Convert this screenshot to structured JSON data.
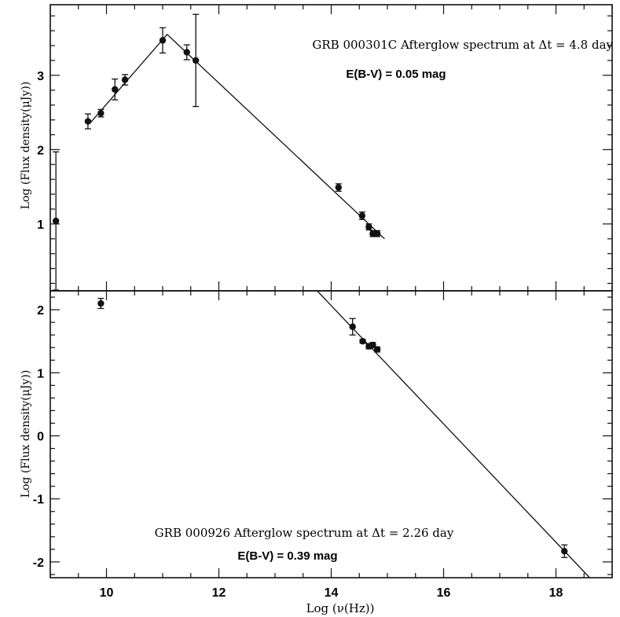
{
  "chart_data": [
    {
      "type": "scatter",
      "title": "GRB 000301C Afterglow spectrum at Δt = 4.8 day",
      "subtitle": "E(B-V) = 0.05 mag",
      "xlabel": "",
      "ylabel": "Log (Flux density(μJy))",
      "xlim": [
        9.0,
        19.0
      ],
      "ylim": [
        0.1,
        3.95
      ],
      "yticks": [
        1,
        2,
        3
      ],
      "grid": false,
      "series": [
        {
          "x": [
            9.1,
            9.67,
            9.9,
            10.15,
            10.33,
            11.0,
            11.43,
            11.59,
            14.13,
            14.55,
            14.67,
            14.74,
            14.82
          ],
          "y": [
            1.04,
            2.38,
            2.49,
            2.81,
            2.94,
            3.47,
            3.31,
            3.2,
            1.49,
            1.11,
            0.96,
            0.87,
            0.87
          ],
          "yerr": [
            0.93,
            0.1,
            0.05,
            0.14,
            0.07,
            0.17,
            0.1,
            0.62,
            0.05,
            0.05,
            0.04,
            0.04,
            0.04
          ]
        }
      ],
      "fit": {
        "x": [
          9.7,
          11.08,
          14.95
        ],
        "y": [
          2.35,
          3.55,
          0.8
        ]
      }
    },
    {
      "type": "scatter",
      "title": "GRB 000926 Afterglow spectrum at Δt = 2.26 day",
      "subtitle": "E(B-V) = 0.39 mag",
      "xlabel": "Log (ν(Hz))",
      "ylabel": "Log (Flux density(μJy))",
      "xlim": [
        9.0,
        19.0
      ],
      "ylim": [
        -2.25,
        2.3
      ],
      "xticks": [
        10,
        12,
        14,
        16,
        18
      ],
      "yticks": [
        -2,
        -1,
        0,
        1,
        2
      ],
      "grid": false,
      "series": [
        {
          "x": [
            9.9,
            14.38,
            14.56,
            14.67,
            14.74,
            14.82,
            18.15
          ],
          "y": [
            2.1,
            1.73,
            1.5,
            1.42,
            1.44,
            1.37,
            -1.83
          ],
          "yerr": [
            0.08,
            0.13,
            0.03,
            0.04,
            0.04,
            0.04,
            0.1
          ]
        }
      ],
      "fit": {
        "x": [
          13.75,
          18.6
        ],
        "y": [
          2.3,
          -2.25
        ]
      }
    }
  ]
}
